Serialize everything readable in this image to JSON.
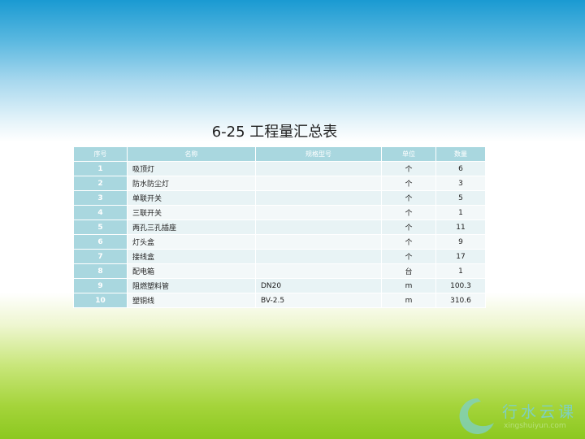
{
  "title": "6-25 工程量汇总表",
  "table": {
    "headers": [
      "序号",
      "名称",
      "规格型号",
      "单位",
      "数量"
    ],
    "rows": [
      [
        "1",
        "吸顶灯",
        "",
        "个",
        "6"
      ],
      [
        "2",
        "防水防尘灯",
        "",
        "个",
        "3"
      ],
      [
        "3",
        "单联开关",
        "",
        "个",
        "5"
      ],
      [
        "4",
        "三联开关",
        "",
        "个",
        "1"
      ],
      [
        "5",
        "两孔三孔插座",
        "",
        "个",
        "11"
      ],
      [
        "6",
        "灯头盒",
        "",
        "个",
        "9"
      ],
      [
        "7",
        "接线盒",
        "",
        "个",
        "17"
      ],
      [
        "8",
        "配电箱",
        "",
        "台",
        "1"
      ],
      [
        "9",
        "阻燃塑料管",
        "DN20",
        "m",
        "100.3"
      ],
      [
        "10",
        "塑铜线",
        "BV-2.5",
        "m",
        "310.6"
      ]
    ]
  },
  "logo": {
    "name": "行水云课",
    "url": "xingshuiyun.com"
  }
}
